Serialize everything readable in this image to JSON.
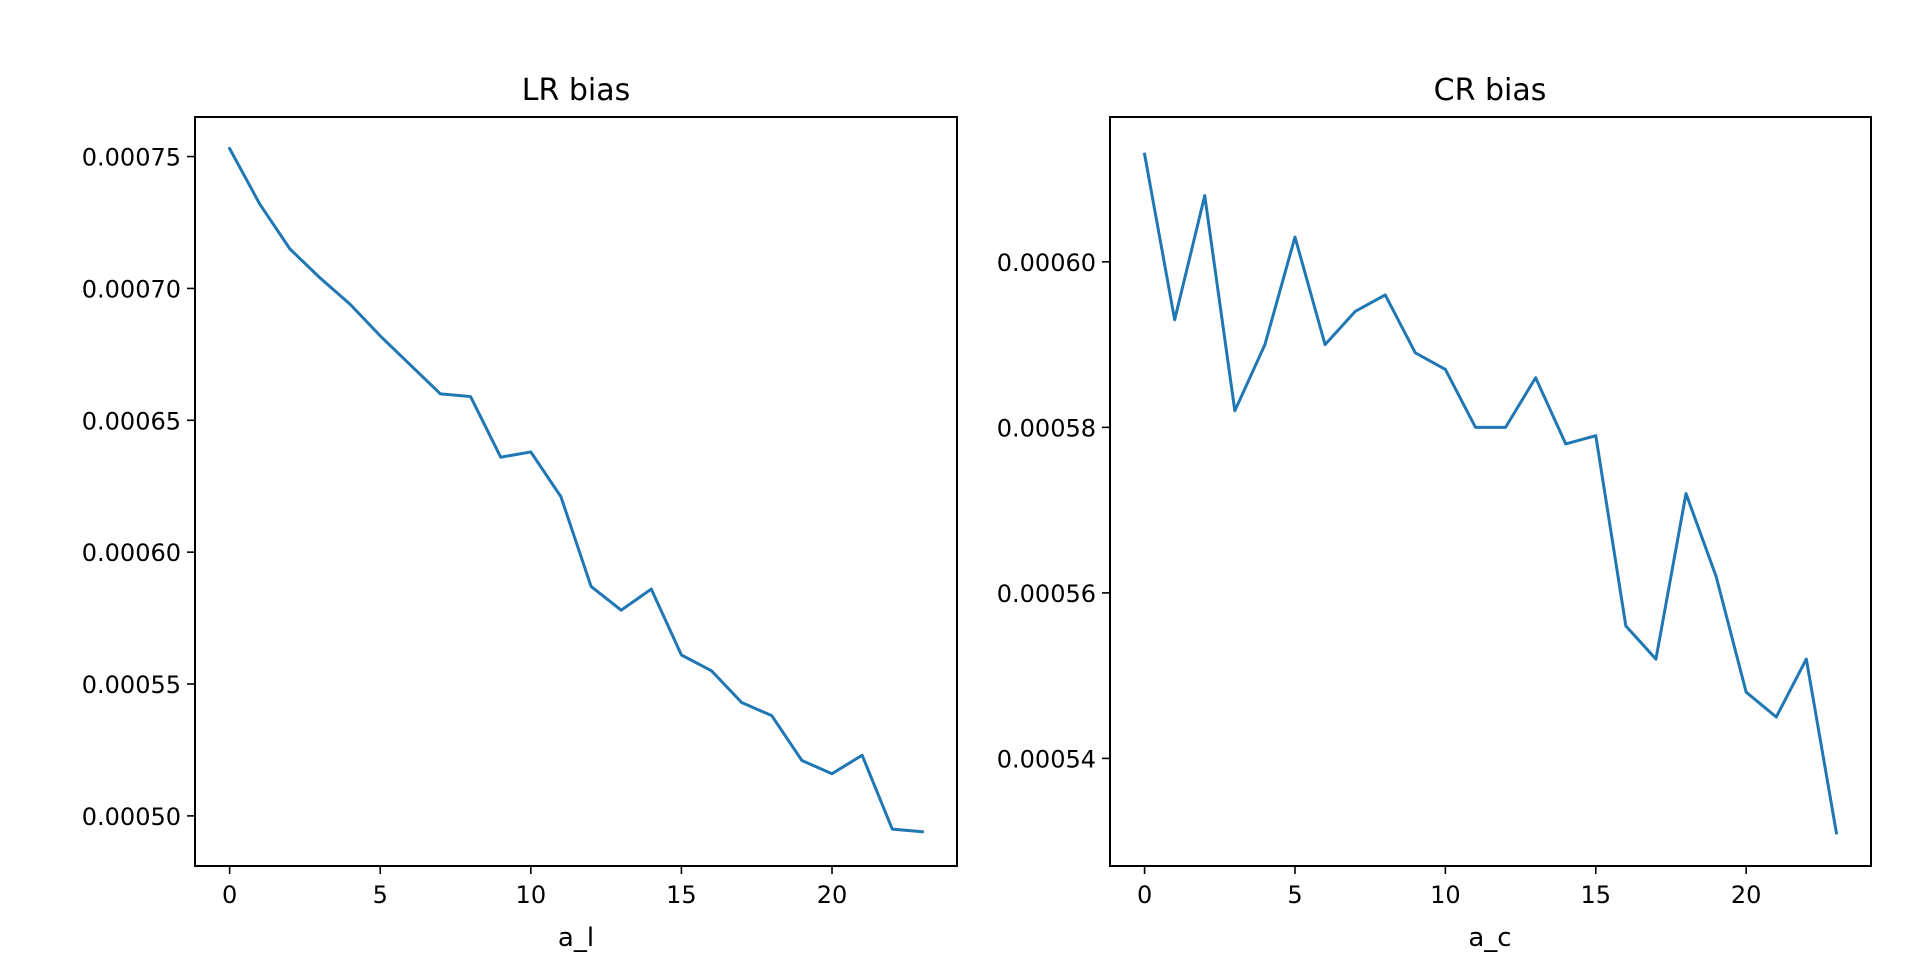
{
  "chart_data": [
    {
      "type": "line",
      "title": "LR bias",
      "xlabel": "a_l",
      "ylabel": "",
      "grid": false,
      "xlim": [
        -1.15,
        24.15
      ],
      "ylim": [
        0.000481,
        0.000765
      ],
      "xticks": [
        0,
        5,
        10,
        15,
        20
      ],
      "xtick_labels": [
        "0",
        "5",
        "10",
        "15",
        "20"
      ],
      "yticks": [
        0.0005,
        0.00055,
        0.0006,
        0.00065,
        0.0007,
        0.00075
      ],
      "ytick_labels": [
        "0.00050",
        "0.00055",
        "0.00060",
        "0.00065",
        "0.00070",
        "0.00075"
      ],
      "color": "#1f77b4",
      "x": [
        0,
        1,
        2,
        3,
        4,
        5,
        6,
        7,
        8,
        9,
        10,
        11,
        12,
        13,
        14,
        15,
        16,
        17,
        18,
        19,
        20,
        21,
        22,
        23
      ],
      "y": [
        0.000753,
        0.000732,
        0.000715,
        0.000704,
        0.000694,
        0.000682,
        0.000671,
        0.00066,
        0.000659,
        0.000636,
        0.000638,
        0.000621,
        0.000587,
        0.000578,
        0.000586,
        0.000561,
        0.000555,
        0.000543,
        0.000538,
        0.000521,
        0.000516,
        0.000523,
        0.000495,
        0.000494
      ]
    },
    {
      "type": "line",
      "title": "CR bias",
      "xlabel": "a_c",
      "ylabel": "",
      "grid": false,
      "xlim": [
        -1.15,
        24.15
      ],
      "ylim": [
        0.000527,
        0.0006175
      ],
      "xticks": [
        0,
        5,
        10,
        15,
        20
      ],
      "xtick_labels": [
        "0",
        "5",
        "10",
        "15",
        "20"
      ],
      "yticks": [
        0.00054,
        0.00056,
        0.00058,
        0.0006
      ],
      "ytick_labels": [
        "0.00054",
        "0.00056",
        "0.00058",
        "0.00060"
      ],
      "color": "#1f77b4",
      "x": [
        0,
        1,
        2,
        3,
        4,
        5,
        6,
        7,
        8,
        9,
        10,
        11,
        12,
        13,
        14,
        15,
        16,
        17,
        18,
        19,
        20,
        21,
        22,
        23
      ],
      "y": [
        0.000613,
        0.000593,
        0.000608,
        0.000582,
        0.00059,
        0.000603,
        0.00059,
        0.000594,
        0.000596,
        0.000589,
        0.000587,
        0.00058,
        0.00058,
        0.000586,
        0.000578,
        0.000579,
        0.000556,
        0.000552,
        0.000572,
        0.000562,
        0.000548,
        0.000545,
        0.000552,
        0.000531
      ]
    }
  ]
}
